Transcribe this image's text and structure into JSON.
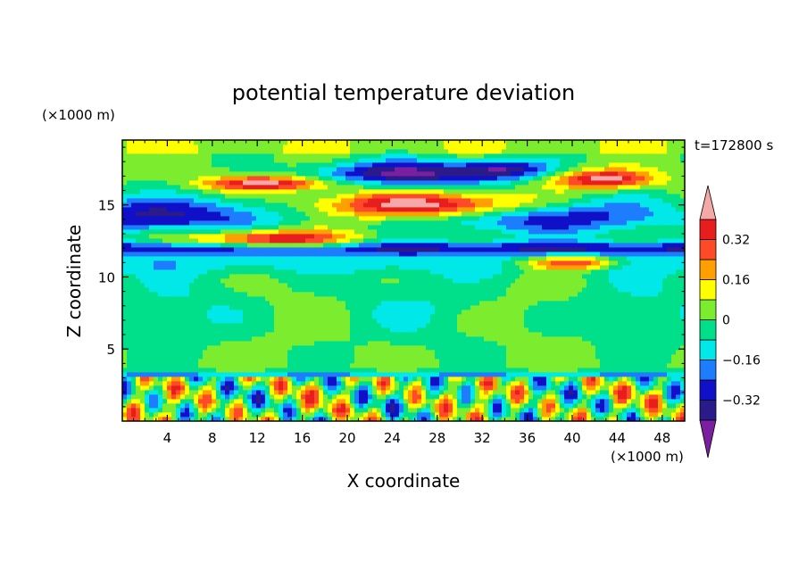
{
  "chart_data": {
    "type": "heatmap",
    "title": "potential temperature deviation",
    "xlabel": "X coordinate",
    "ylabel": "Z coordinate",
    "x_unit": "(×1000 m)",
    "y_unit": "(×1000 m)",
    "time_label": "t=172800 s",
    "xlim": [
      0,
      50
    ],
    "ylim": [
      0,
      19.5
    ],
    "x_ticks": [
      4,
      8,
      12,
      16,
      20,
      24,
      28,
      32,
      36,
      40,
      44,
      48
    ],
    "y_ticks": [
      5,
      10,
      15
    ],
    "colorbar": {
      "levels": [
        -0.4,
        -0.32,
        -0.24,
        -0.16,
        -0.08,
        0,
        0.08,
        0.16,
        0.24,
        0.32,
        0.4
      ],
      "labeled_levels": [
        0.32,
        0.16,
        0,
        -0.16,
        -0.32
      ],
      "labels": [
        "0.32",
        "0.16",
        "0",
        "−0.16",
        "−0.32"
      ],
      "colors": [
        "#7a1fa0",
        "#2a1a8a",
        "#1010c8",
        "#1e7cff",
        "#00e8e8",
        "#00e08a",
        "#7ced2e",
        "#ffff00",
        "#ffa000",
        "#ff4a2a",
        "#e81e1e",
        "#f4a8a8"
      ],
      "extend": "both"
    }
  }
}
